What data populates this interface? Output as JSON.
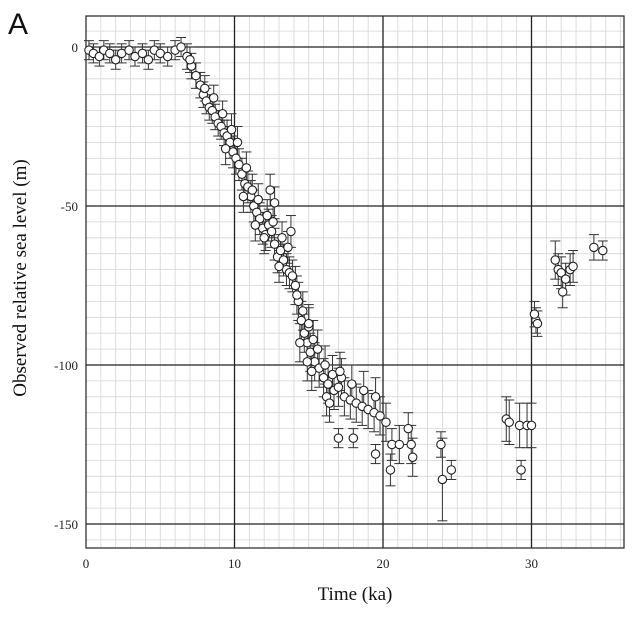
{
  "panel_label": "A",
  "chart_data": {
    "type": "scatter",
    "title": "",
    "xlabel": "Time (ka)",
    "ylabel": "Observed relative sea level (m)",
    "xlim": [
      0,
      36.5
    ],
    "ylim": [
      -160,
      8
    ],
    "xticks": [
      0,
      10,
      20,
      30
    ],
    "yticks": [
      0,
      -50,
      -100,
      -150
    ],
    "major_grid_x": [
      10,
      20,
      30
    ],
    "major_grid_y": [
      0,
      -50,
      -100,
      -150
    ],
    "minor_grid_step_x": 1,
    "minor_grid_step_y": 5,
    "marker": "open-circle",
    "error_bars": "vertical",
    "series": [
      {
        "points": [
          {
            "x": 0.2,
            "y": -1,
            "e": 3
          },
          {
            "x": 0.5,
            "y": -2,
            "e": 3
          },
          {
            "x": 0.9,
            "y": -3,
            "e": 3
          },
          {
            "x": 1.2,
            "y": -1,
            "e": 3
          },
          {
            "x": 1.6,
            "y": -2,
            "e": 3
          },
          {
            "x": 2.0,
            "y": -4,
            "e": 3
          },
          {
            "x": 2.4,
            "y": -2,
            "e": 3
          },
          {
            "x": 2.9,
            "y": -1,
            "e": 3
          },
          {
            "x": 3.3,
            "y": -3,
            "e": 3
          },
          {
            "x": 3.8,
            "y": -2,
            "e": 3
          },
          {
            "x": 4.2,
            "y": -4,
            "e": 3
          },
          {
            "x": 4.6,
            "y": -1,
            "e": 3
          },
          {
            "x": 5.0,
            "y": -2,
            "e": 3
          },
          {
            "x": 5.5,
            "y": -3,
            "e": 3
          },
          {
            "x": 6.0,
            "y": -1,
            "e": 3
          },
          {
            "x": 6.4,
            "y": 0,
            "e": 3
          },
          {
            "x": 6.8,
            "y": -3,
            "e": 4
          },
          {
            "x": 7.1,
            "y": -6,
            "e": 4
          },
          {
            "x": 7.4,
            "y": -9,
            "e": 4
          },
          {
            "x": 7.7,
            "y": -12,
            "e": 4
          },
          {
            "x": 7.9,
            "y": -15,
            "e": 4
          },
          {
            "x": 8.1,
            "y": -17,
            "e": 4
          },
          {
            "x": 8.3,
            "y": -19,
            "e": 4
          },
          {
            "x": 8.5,
            "y": -20,
            "e": 4
          },
          {
            "x": 8.7,
            "y": -22,
            "e": 4
          },
          {
            "x": 8.9,
            "y": -24,
            "e": 4
          },
          {
            "x": 9.1,
            "y": -25,
            "e": 4
          },
          {
            "x": 9.3,
            "y": -27,
            "e": 4
          },
          {
            "x": 9.5,
            "y": -28,
            "e": 5
          },
          {
            "x": 9.7,
            "y": -30,
            "e": 5
          },
          {
            "x": 9.9,
            "y": -33,
            "e": 5
          },
          {
            "x": 10.1,
            "y": -35,
            "e": 5
          },
          {
            "x": 10.3,
            "y": -37,
            "e": 5
          },
          {
            "x": 10.5,
            "y": -40,
            "e": 5
          },
          {
            "x": 10.7,
            "y": -43,
            "e": 5
          },
          {
            "x": 10.9,
            "y": -44,
            "e": 5
          },
          {
            "x": 11.1,
            "y": -47,
            "e": 5
          },
          {
            "x": 11.3,
            "y": -50,
            "e": 5
          },
          {
            "x": 11.5,
            "y": -52,
            "e": 5
          },
          {
            "x": 11.7,
            "y": -54,
            "e": 5
          },
          {
            "x": 11.9,
            "y": -57,
            "e": 5
          },
          {
            "x": 12.1,
            "y": -59,
            "e": 5
          },
          {
            "x": 12.3,
            "y": -56,
            "e": 5
          },
          {
            "x": 12.5,
            "y": -58,
            "e": 5
          },
          {
            "x": 12.7,
            "y": -62,
            "e": 5
          },
          {
            "x": 12.9,
            "y": -66,
            "e": 5
          },
          {
            "x": 13.1,
            "y": -64,
            "e": 5
          },
          {
            "x": 13.3,
            "y": -67,
            "e": 5
          },
          {
            "x": 13.5,
            "y": -70,
            "e": 5
          },
          {
            "x": 13.7,
            "y": -71,
            "e": 5
          },
          {
            "x": 13.9,
            "y": -72,
            "e": 5
          },
          {
            "x": 14.1,
            "y": -75,
            "e": 6
          },
          {
            "x": 14.3,
            "y": -80,
            "e": 6
          },
          {
            "x": 14.5,
            "y": -86,
            "e": 6
          },
          {
            "x": 14.7,
            "y": -90,
            "e": 6
          },
          {
            "x": 14.9,
            "y": -93,
            "e": 6
          },
          {
            "x": 15.1,
            "y": -96,
            "e": 6
          },
          {
            "x": 15.4,
            "y": -99,
            "e": 6
          },
          {
            "x": 15.7,
            "y": -101,
            "e": 6
          },
          {
            "x": 16.0,
            "y": -104,
            "e": 6
          },
          {
            "x": 16.3,
            "y": -106,
            "e": 6
          },
          {
            "x": 16.7,
            "y": -108,
            "e": 6
          },
          {
            "x": 17.0,
            "y": -107,
            "e": 6
          },
          {
            "x": 17.4,
            "y": -110,
            "e": 6
          },
          {
            "x": 17.8,
            "y": -111,
            "e": 6
          },
          {
            "x": 18.2,
            "y": -112,
            "e": 6
          },
          {
            "x": 18.6,
            "y": -113,
            "e": 6
          },
          {
            "x": 19.0,
            "y": -114,
            "e": 6
          },
          {
            "x": 19.4,
            "y": -115,
            "e": 6
          },
          {
            "x": 19.8,
            "y": -116,
            "e": 6
          },
          {
            "x": 20.2,
            "y": -118,
            "e": 6
          },
          {
            "x": 7.0,
            "y": -4,
            "e": 4
          },
          {
            "x": 8.0,
            "y": -13,
            "e": 4
          },
          {
            "x": 8.6,
            "y": -16,
            "e": 4
          },
          {
            "x": 9.2,
            "y": -21,
            "e": 4
          },
          {
            "x": 9.8,
            "y": -26,
            "e": 5
          },
          {
            "x": 10.2,
            "y": -30,
            "e": 5
          },
          {
            "x": 10.8,
            "y": -38,
            "e": 5
          },
          {
            "x": 11.2,
            "y": -45,
            "e": 5
          },
          {
            "x": 11.6,
            "y": -48,
            "e": 5
          },
          {
            "x": 12.2,
            "y": -53,
            "e": 5
          },
          {
            "x": 12.6,
            "y": -55,
            "e": 5
          },
          {
            "x": 13.2,
            "y": -60,
            "e": 5
          },
          {
            "x": 13.6,
            "y": -63,
            "e": 5
          },
          {
            "x": 14.2,
            "y": -78,
            "e": 6
          },
          {
            "x": 14.6,
            "y": -83,
            "e": 6
          },
          {
            "x": 15.0,
            "y": -88,
            "e": 6
          },
          {
            "x": 15.3,
            "y": -92,
            "e": 6
          },
          {
            "x": 15.6,
            "y": -95,
            "e": 6
          },
          {
            "x": 16.1,
            "y": -100,
            "e": 6
          },
          {
            "x": 16.6,
            "y": -103,
            "e": 6
          },
          {
            "x": 17.2,
            "y": -104,
            "e": 6
          },
          {
            "x": 17.9,
            "y": -106,
            "e": 6
          },
          {
            "x": 18.7,
            "y": -108,
            "e": 6
          },
          {
            "x": 19.5,
            "y": -110,
            "e": 6
          },
          {
            "x": 9.4,
            "y": -32,
            "e": 5
          },
          {
            "x": 10.6,
            "y": -47,
            "e": 5
          },
          {
            "x": 11.4,
            "y": -56,
            "e": 5
          },
          {
            "x": 12.0,
            "y": -60,
            "e": 5
          },
          {
            "x": 13.0,
            "y": -69,
            "e": 5
          },
          {
            "x": 14.4,
            "y": -93,
            "e": 6
          },
          {
            "x": 15.2,
            "y": -102,
            "e": 6
          },
          {
            "x": 16.2,
            "y": -110,
            "e": 6
          },
          {
            "x": 12.4,
            "y": -45,
            "e": 5
          },
          {
            "x": 12.7,
            "y": -49,
            "e": 5
          },
          {
            "x": 13.8,
            "y": -58,
            "e": 5
          },
          {
            "x": 15.0,
            "y": -87,
            "e": 6
          },
          {
            "x": 14.9,
            "y": -99,
            "e": 6
          },
          {
            "x": 16.4,
            "y": -112,
            "e": 6
          },
          {
            "x": 17.1,
            "y": -102,
            "e": 6
          },
          {
            "x": 17.0,
            "y": -123,
            "e": 3
          },
          {
            "x": 18.0,
            "y": -123,
            "e": 3
          },
          {
            "x": 19.5,
            "y": -128,
            "e": 3
          },
          {
            "x": 20.5,
            "y": -133,
            "e": 5
          },
          {
            "x": 20.6,
            "y": -125,
            "e": 5
          },
          {
            "x": 21.1,
            "y": -125,
            "e": 6
          },
          {
            "x": 21.7,
            "y": -120,
            "e": 5
          },
          {
            "x": 21.9,
            "y": -125,
            "e": 6
          },
          {
            "x": 22.0,
            "y": -129,
            "e": 6
          },
          {
            "x": 23.9,
            "y": -125,
            "e": 4
          },
          {
            "x": 24.0,
            "y": -136,
            "e": 13
          },
          {
            "x": 24.6,
            "y": -133,
            "e": 3
          },
          {
            "x": 28.3,
            "y": -117,
            "e": 7
          },
          {
            "x": 28.5,
            "y": -118,
            "e": 7
          },
          {
            "x": 29.2,
            "y": -119,
            "e": 7
          },
          {
            "x": 29.3,
            "y": -133,
            "e": 3
          },
          {
            "x": 29.7,
            "y": -119,
            "e": 7
          },
          {
            "x": 30.0,
            "y": -119,
            "e": 7
          },
          {
            "x": 30.3,
            "y": -86,
            "e": 4
          },
          {
            "x": 30.4,
            "y": -87,
            "e": 4
          },
          {
            "x": 30.2,
            "y": -84,
            "e": 4
          },
          {
            "x": 31.6,
            "y": -67,
            "e": 6
          },
          {
            "x": 31.8,
            "y": -70,
            "e": 5
          },
          {
            "x": 32.0,
            "y": -71,
            "e": 5
          },
          {
            "x": 32.1,
            "y": -77,
            "e": 5
          },
          {
            "x": 32.3,
            "y": -73,
            "e": 5
          },
          {
            "x": 32.6,
            "y": -70,
            "e": 5
          },
          {
            "x": 32.8,
            "y": -69,
            "e": 5
          },
          {
            "x": 34.2,
            "y": -63,
            "e": 4
          },
          {
            "x": 34.8,
            "y": -64,
            "e": 3
          }
        ]
      }
    ]
  }
}
